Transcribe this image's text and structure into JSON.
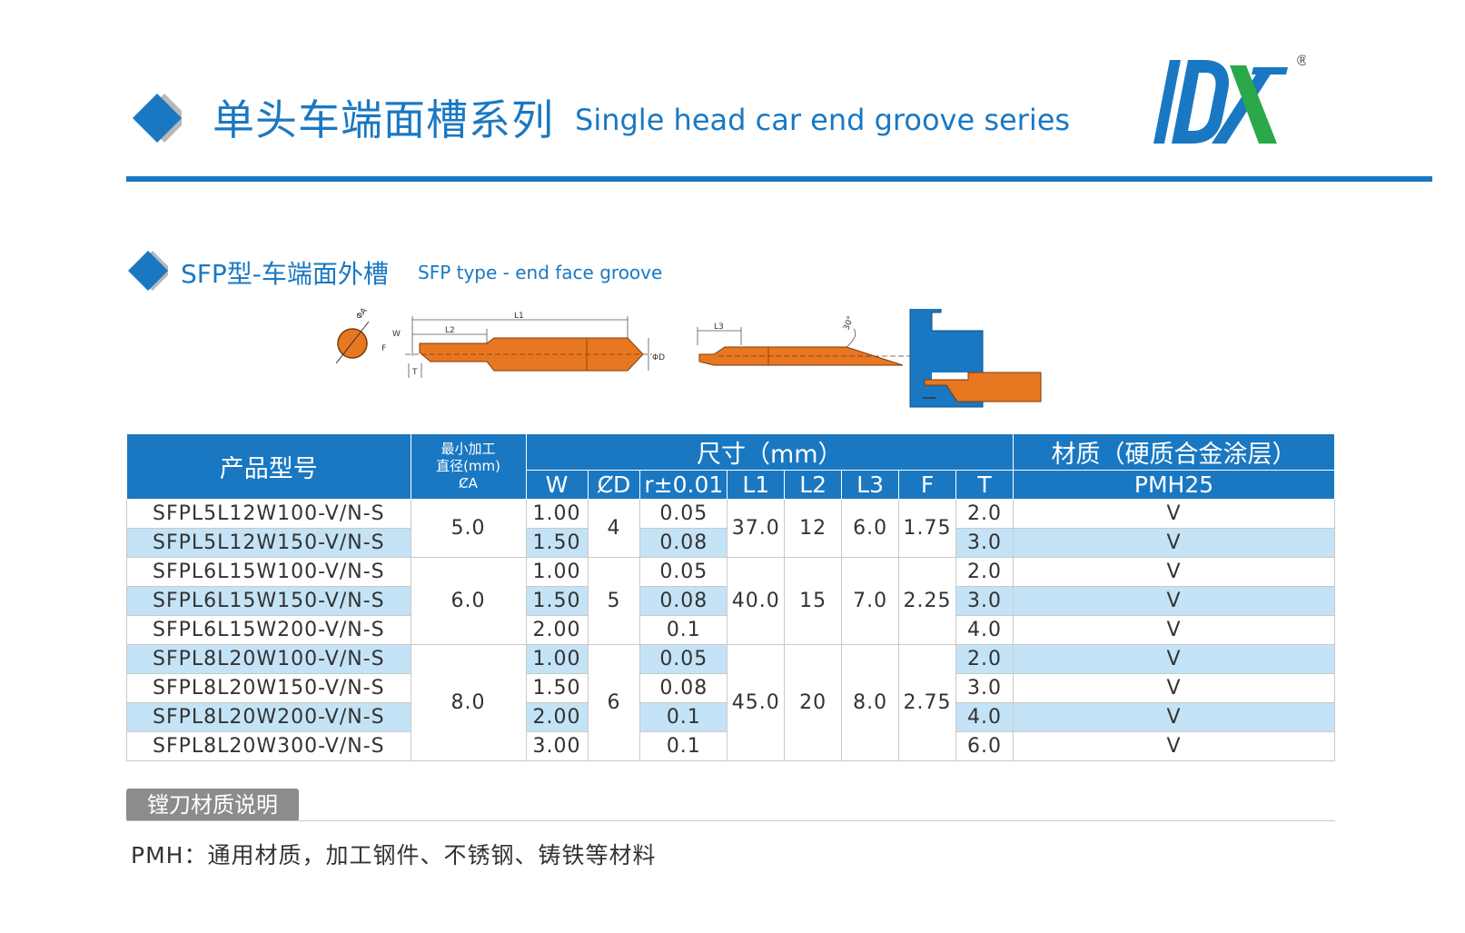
{
  "header": {
    "title_cn": "单头车端面槽系列",
    "title_en": "Single head car end groove series",
    "logo_text": "DX",
    "logo_registered": "®"
  },
  "section": {
    "title_cn": "SFP型-车端面外槽",
    "title_en": "SFP type - end face groove"
  },
  "drawing": {
    "labels": {
      "dia_a": "ΦA",
      "w": "W",
      "f": "F",
      "t": "T",
      "l1": "L1",
      "l2": "L2",
      "l3": "L3",
      "dia_d": "ΦD",
      "angle": "30°"
    },
    "colors": {
      "tool": "#e87722",
      "outline": "#7a3b0a",
      "workpiece": "#1a78c2"
    }
  },
  "table": {
    "headers": {
      "product": "产品型号",
      "min_dia_line1": "最小加工",
      "min_dia_line2": "直径(mm)",
      "min_dia_line3": "ȻA",
      "dimension": "尺寸（mm）",
      "material": "材质（硬质合金涂层）",
      "w": "W",
      "d": "ȻD",
      "r": "r±0.01",
      "l1": "L1",
      "l2": "L2",
      "l3": "L3",
      "f": "F",
      "t": "T",
      "grade": "PMH25"
    },
    "groups": [
      {
        "a": "5.0",
        "d": "4",
        "l1": "37.0",
        "l2": "12",
        "l3": "6.0",
        "f": "1.75"
      },
      {
        "a": "6.0",
        "d": "5",
        "l1": "40.0",
        "l2": "15",
        "l3": "7.0",
        "f": "2.25"
      },
      {
        "a": "8.0",
        "d": "6",
        "l1": "45.0",
        "l2": "20",
        "l3": "8.0",
        "f": "2.75"
      }
    ],
    "rows": [
      {
        "model": "SFPL5L12W100-V/N-S",
        "w": "1.00",
        "r": "0.05",
        "t": "2.0",
        "grade": "V"
      },
      {
        "model": "SFPL5L12W150-V/N-S",
        "w": "1.50",
        "r": "0.08",
        "t": "3.0",
        "grade": "V"
      },
      {
        "model": "SFPL6L15W100-V/N-S",
        "w": "1.00",
        "r": "0.05",
        "t": "2.0",
        "grade": "V"
      },
      {
        "model": "SFPL6L15W150-V/N-S",
        "w": "1.50",
        "r": "0.08",
        "t": "3.0",
        "grade": "V"
      },
      {
        "model": "SFPL6L15W200-V/N-S",
        "w": "2.00",
        "r": "0.1",
        "t": "4.0",
        "grade": "V"
      },
      {
        "model": "SFPL8L20W100-V/N-S",
        "w": "1.00",
        "r": "0.05",
        "t": "2.0",
        "grade": "V"
      },
      {
        "model": "SFPL8L20W150-V/N-S",
        "w": "1.50",
        "r": "0.08",
        "t": "3.0",
        "grade": "V"
      },
      {
        "model": "SFPL8L20W200-V/N-S",
        "w": "2.00",
        "r": "0.1",
        "t": "4.0",
        "grade": "V"
      },
      {
        "model": "SFPL8L20W300-V/N-S",
        "w": "3.00",
        "r": "0.1",
        "t": "6.0",
        "grade": "V"
      }
    ]
  },
  "note": {
    "label": "镗刀材质说明",
    "text": "PMH：通用材质，加工钢件、不锈钢、铸铁等材料"
  },
  "colors": {
    "brand_blue": "#1a78c2",
    "row_highlight": "#c4e3f6",
    "logo_green": "#2aa84a",
    "label_gray": "#8c8c8c"
  }
}
